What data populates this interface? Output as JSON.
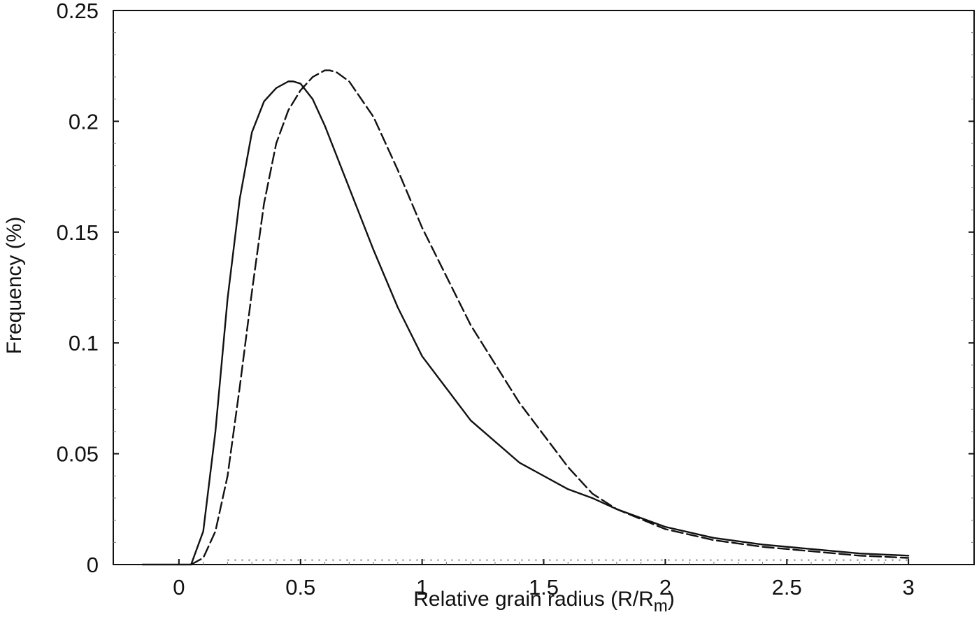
{
  "chart_data": {
    "type": "line",
    "title": "",
    "xlabel": "Relative grain radius (R/R",
    "xlabel_sub": "m",
    "xlabel_close": ")",
    "ylabel": "Frequency (%)",
    "xlim": [
      -0.27,
      3.27
    ],
    "ylim": [
      0,
      0.25
    ],
    "x_ticks": [
      0,
      0.5,
      1,
      1.5,
      2,
      2.5,
      3
    ],
    "x_tick_labels": [
      "0",
      "0.5",
      "1",
      "1.5",
      "2",
      "2.5",
      "3"
    ],
    "y_ticks": [
      0,
      0.05,
      0.1,
      0.15,
      0.2,
      0.25
    ],
    "y_tick_labels": [
      "0",
      "0.05",
      "0.1",
      "0.15",
      "0.2",
      "0.25"
    ],
    "grid": false,
    "legend": "none",
    "colors": {
      "axes": "#111111",
      "solid_series": "#111111",
      "dashed_series": "#111111",
      "dotted_baseline": "#777777"
    },
    "series": [
      {
        "style": "solid",
        "x": [
          -0.15,
          0.05,
          0.1,
          0.15,
          0.2,
          0.25,
          0.3,
          0.35,
          0.4,
          0.45,
          0.47,
          0.5,
          0.55,
          0.6,
          0.7,
          0.8,
          0.9,
          1.0,
          1.2,
          1.4,
          1.6,
          1.7,
          1.8,
          2.0,
          2.2,
          2.4,
          2.6,
          2.8,
          3.0
        ],
        "y": [
          0,
          0,
          0.015,
          0.06,
          0.12,
          0.165,
          0.195,
          0.209,
          0.215,
          0.218,
          0.218,
          0.217,
          0.21,
          0.198,
          0.17,
          0.142,
          0.116,
          0.094,
          0.065,
          0.046,
          0.034,
          0.03,
          0.025,
          0.017,
          0.012,
          0.009,
          0.007,
          0.005,
          0.004
        ]
      },
      {
        "style": "dashed",
        "x": [
          0.05,
          0.1,
          0.15,
          0.2,
          0.25,
          0.3,
          0.35,
          0.4,
          0.45,
          0.5,
          0.55,
          0.6,
          0.62,
          0.65,
          0.7,
          0.8,
          0.9,
          1.0,
          1.2,
          1.4,
          1.6,
          1.7,
          1.8,
          2.0,
          2.2,
          2.4,
          2.6,
          2.8,
          3.0
        ],
        "y": [
          0,
          0.003,
          0.015,
          0.04,
          0.08,
          0.123,
          0.163,
          0.19,
          0.205,
          0.214,
          0.22,
          0.223,
          0.223,
          0.222,
          0.218,
          0.202,
          0.178,
          0.152,
          0.108,
          0.073,
          0.044,
          0.032,
          0.025,
          0.016,
          0.011,
          0.008,
          0.006,
          0.004,
          0.003
        ]
      }
    ],
    "dotted_baseline": {
      "x": [
        0.2,
        3.0
      ],
      "y": 0.002
    }
  }
}
